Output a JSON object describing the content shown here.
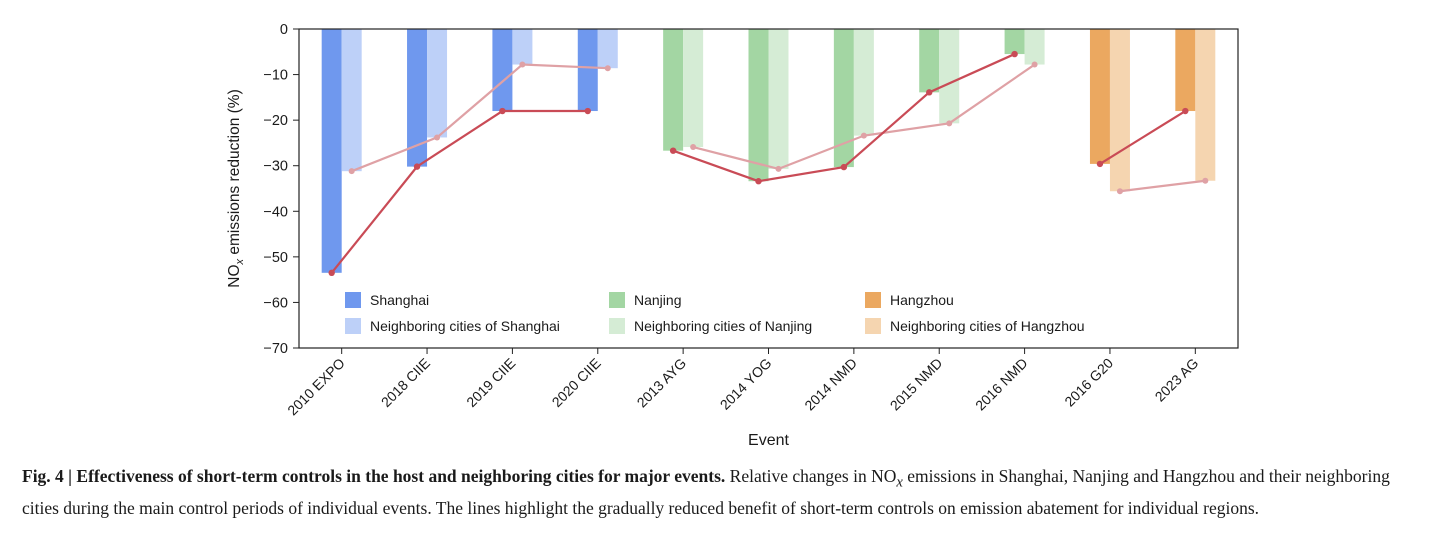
{
  "chart_data": {
    "type": "bar",
    "xlabel": "Event",
    "ylabel_parts": {
      "main": "NO",
      "sub": "x",
      "rest": " emissions reduction (%)"
    },
    "ylim": [
      -70,
      0
    ],
    "yticks": [
      0,
      -10,
      -20,
      -30,
      -40,
      -50,
      -60,
      -70
    ],
    "ytick_labels": [
      "0",
      "−10",
      "−20",
      "−30",
      "−40",
      "−50",
      "−60",
      "−70"
    ],
    "categories": [
      "2010 EXPO",
      "2018 CIIE",
      "2019 CIIE",
      "2020 CIIE",
      "2013 AYG",
      "2014 YOG",
      "2014 NMD",
      "2015 NMD",
      "2016 NMD",
      "2016 G20",
      "2023 AG"
    ],
    "host_values": [
      -53.5,
      -30.2,
      -18.0,
      -18.0,
      -26.7,
      -33.4,
      -30.3,
      -13.9,
      -5.5,
      -29.6,
      -18.0
    ],
    "neighbor_values": [
      -31.2,
      -23.8,
      -7.8,
      -8.6,
      -25.9,
      -30.7,
      -23.4,
      -20.7,
      -7.8,
      -35.6,
      -33.3
    ],
    "groups": [
      {
        "host": "Shanghai",
        "neighbor": "Neighboring cities of Shanghai",
        "host_color": "#6f98ee",
        "neighbor_color": "#bdd0f8",
        "indices": [
          0,
          1,
          2,
          3
        ]
      },
      {
        "host": "Nanjing",
        "neighbor": "Neighboring cities of Nanjing",
        "host_color": "#a3d6a3",
        "neighbor_color": "#d5ecd5",
        "indices": [
          4,
          5,
          6,
          7,
          8
        ]
      },
      {
        "host": "Hangzhou",
        "neighbor": "Neighboring cities of Hangzhou",
        "host_color": "#eba860",
        "neighbor_color": "#f5d5b0",
        "indices": [
          9,
          10
        ]
      }
    ],
    "line_colors": {
      "host": "#c94b56",
      "neighbor": "#dfa1a5"
    },
    "legend": {
      "placement": "bottom-inside",
      "entries": [
        {
          "label": "Shanghai",
          "color": "#6f98ee"
        },
        {
          "label": "Nanjing",
          "color": "#a3d6a3"
        },
        {
          "label": "Hangzhou",
          "color": "#eba860"
        },
        {
          "label": "Neighboring cities of Shanghai",
          "color": "#bdd0f8"
        },
        {
          "label": "Neighboring cities of Nanjing",
          "color": "#d5ecd5"
        },
        {
          "label": "Neighboring cities of Hangzhou",
          "color": "#f5d5b0"
        }
      ]
    },
    "grid": false
  },
  "caption": {
    "bold": "Fig. 4 | Effectiveness of short-term controls in the host and neighboring cities for major events.",
    "text_a": " Relative changes in NO",
    "sub": "x",
    "text_b": " emissions in Shanghai, Nanjing and Hangzhou and their neighboring cities during the main control periods of individual events. The lines highlight the gradually reduced benefit of short-term controls on emission abatement for individual regions."
  }
}
